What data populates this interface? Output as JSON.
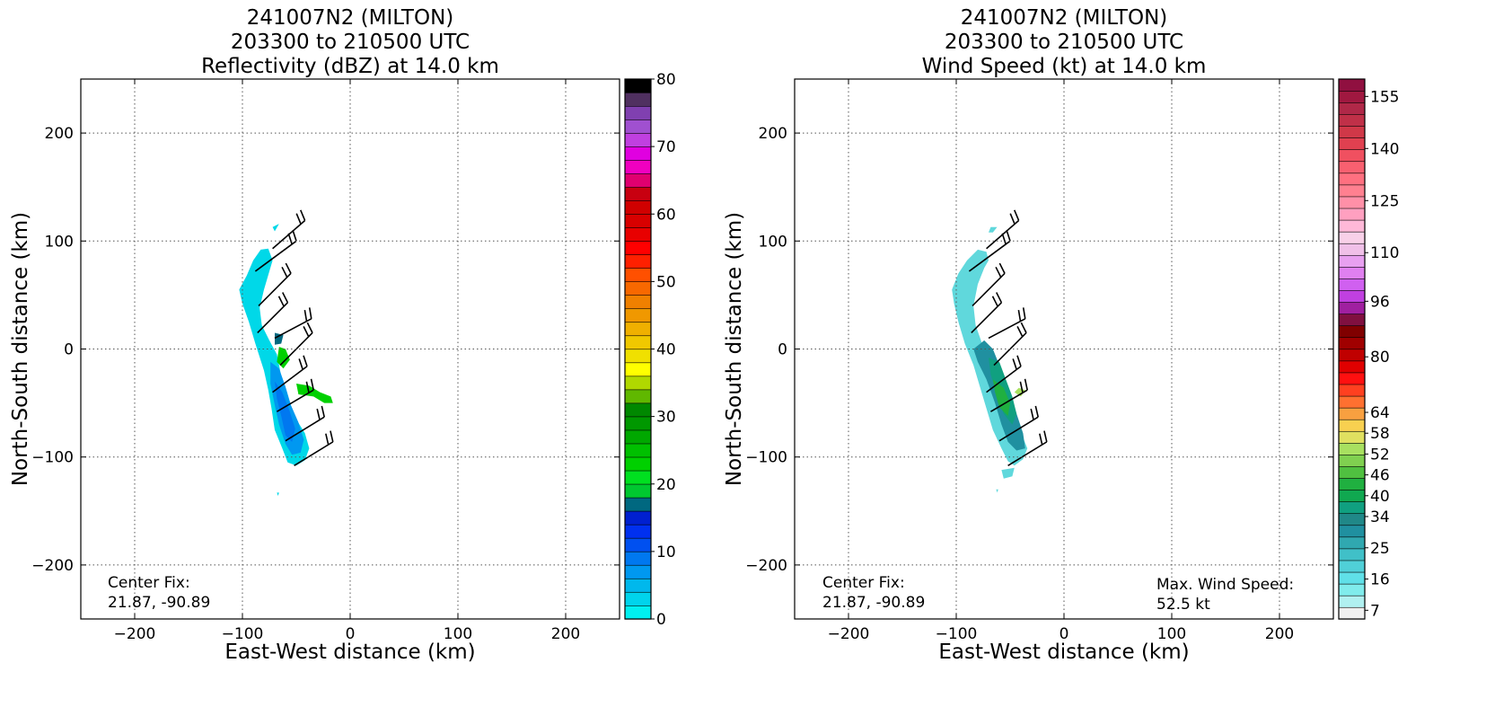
{
  "chart_data": [
    {
      "type": "heatmap",
      "title_lines": [
        "241007N2 (MILTON)",
        "203300 to 210500 UTC",
        "Reflectivity (dBZ) at 14.0 km"
      ],
      "xlabel": "East-West distance (km)",
      "ylabel": "North-South distance (km)",
      "xlim": [
        -250,
        250
      ],
      "ylim": [
        -250,
        250
      ],
      "xticks": [
        -200,
        -100,
        0,
        100,
        200
      ],
      "yticks": [
        -200,
        -100,
        0,
        100,
        200
      ],
      "grid": true,
      "colorbar": {
        "min": 0,
        "max": 80,
        "step": 2.5,
        "ticks": [
          0,
          10,
          20,
          30,
          40,
          50,
          60,
          70,
          80
        ],
        "colors": [
          "#00f0f0",
          "#00d4ec",
          "#00b8ec",
          "#0098f0",
          "#0078f0",
          "#0050f0",
          "#0030f0",
          "#0020d0",
          "#006880",
          "#00c830",
          "#00e020",
          "#00d000",
          "#00c000",
          "#00a800",
          "#009800",
          "#008800",
          "#60b800",
          "#b0d800",
          "#ffff00",
          "#f0e000",
          "#f0c800",
          "#f0b000",
          "#f09800",
          "#f08000",
          "#f86800",
          "#ff5000",
          "#ff2000",
          "#ff0000",
          "#e80000",
          "#d80000",
          "#d00000",
          "#c80010",
          "#e00070",
          "#f000c0",
          "#e000e0",
          "#c040e0",
          "#a050d0",
          "#8040b0",
          "#503060",
          "#000000"
        ]
      },
      "annotation": {
        "label": "Center Fix:",
        "value": "21.87, -90.89"
      },
      "regions": [
        {
          "color": "#00d8e8",
          "points": [
            [
              -72,
              113
            ],
            [
              -66,
              116
            ],
            [
              -70,
              109
            ]
          ]
        },
        {
          "color": "#00d8e8",
          "points": [
            [
              -83,
              92
            ],
            [
              -76,
              93
            ],
            [
              -72,
              82
            ],
            [
              -75,
              72
            ],
            [
              -80,
              55
            ],
            [
              -84,
              38
            ],
            [
              -82,
              22
            ],
            [
              -75,
              8
            ],
            [
              -68,
              -5
            ],
            [
              -64,
              -25
            ],
            [
              -58,
              -45
            ],
            [
              -52,
              -62
            ],
            [
              -42,
              -78
            ],
            [
              -38,
              -92
            ],
            [
              -42,
              -103
            ],
            [
              -50,
              -108
            ],
            [
              -58,
              -105
            ],
            [
              -63,
              -92
            ],
            [
              -70,
              -75
            ],
            [
              -73,
              -55
            ],
            [
              -76,
              -38
            ],
            [
              -80,
              -20
            ],
            [
              -88,
              5
            ],
            [
              -94,
              25
            ],
            [
              -100,
              42
            ],
            [
              -103,
              55
            ],
            [
              -96,
              68
            ],
            [
              -90,
              82
            ]
          ]
        },
        {
          "color": "#0098f0",
          "points": [
            [
              -74,
              -12
            ],
            [
              -66,
              -18
            ],
            [
              -60,
              -35
            ],
            [
              -55,
              -52
            ],
            [
              -48,
              -68
            ],
            [
              -43,
              -84
            ],
            [
              -46,
              -96
            ],
            [
              -54,
              -98
            ],
            [
              -60,
              -88
            ],
            [
              -66,
              -70
            ],
            [
              -70,
              -52
            ],
            [
              -74,
              -32
            ]
          ]
        },
        {
          "color": "#0078f0",
          "points": [
            [
              -70,
              -30
            ],
            [
              -63,
              -40
            ],
            [
              -56,
              -58
            ],
            [
              -51,
              -74
            ],
            [
              -54,
              -86
            ],
            [
              -60,
              -80
            ],
            [
              -64,
              -62
            ],
            [
              -68,
              -46
            ]
          ]
        },
        {
          "color": "#00d000",
          "points": [
            [
              -66,
              2
            ],
            [
              -60,
              0
            ],
            [
              -56,
              -10
            ],
            [
              -62,
              -18
            ],
            [
              -68,
              -12
            ]
          ]
        },
        {
          "color": "#00d000",
          "points": [
            [
              -50,
              -32
            ],
            [
              -38,
              -34
            ],
            [
              -28,
              -40
            ],
            [
              -18,
              -44
            ],
            [
              -16,
              -50
            ],
            [
              -24,
              -50
            ],
            [
              -34,
              -44
            ],
            [
              -48,
              -42
            ]
          ]
        },
        {
          "color": "#006880",
          "points": [
            [
              -70,
              15
            ],
            [
              -62,
              13
            ],
            [
              -64,
              5
            ],
            [
              -70,
              4
            ]
          ]
        },
        {
          "color": "#00d8e8",
          "points": [
            [
              -68,
              -133
            ],
            [
              -66,
              -133
            ],
            [
              -67,
              -136
            ]
          ]
        }
      ],
      "barbs": [
        {
          "x": -88,
          "y": 72,
          "u": 38,
          "v": 28
        },
        {
          "x": -72,
          "y": 93,
          "u": 30,
          "v": 26
        },
        {
          "x": -85,
          "y": 40,
          "u": 30,
          "v": 30
        },
        {
          "x": -86,
          "y": 15,
          "u": 28,
          "v": 28
        },
        {
          "x": -70,
          "y": 10,
          "u": 34,
          "v": 18
        },
        {
          "x": -65,
          "y": -15,
          "u": 30,
          "v": 30
        },
        {
          "x": -72,
          "y": -40,
          "u": 32,
          "v": 24
        },
        {
          "x": -68,
          "y": -58,
          "u": 34,
          "v": 20
        },
        {
          "x": -60,
          "y": -85,
          "u": 36,
          "v": 22
        },
        {
          "x": -52,
          "y": -108,
          "u": 36,
          "v": 22
        }
      ]
    },
    {
      "type": "heatmap",
      "title_lines": [
        "241007N2 (MILTON)",
        "203300 to 210500 UTC",
        "Wind Speed (kt) at 14.0 km"
      ],
      "xlabel": "East-West distance (km)",
      "ylabel": "North-South distance (km)",
      "xlim": [
        -250,
        250
      ],
      "ylim": [
        -250,
        250
      ],
      "xticks": [
        -200,
        -100,
        0,
        100,
        200
      ],
      "yticks": [
        -200,
        -100,
        0,
        100,
        200
      ],
      "grid": true,
      "colorbar": {
        "min": 4.5,
        "max": 160,
        "step": 3,
        "ticks": [
          7,
          16,
          25,
          34,
          40,
          46,
          52,
          58,
          64,
          80,
          96,
          110,
          125,
          140,
          155
        ],
        "tick_positions": [
          7,
          16,
          25,
          34,
          40,
          46,
          52,
          58,
          64,
          80,
          96,
          110,
          125,
          140,
          155
        ],
        "colors": [
          "#f0f0f0",
          "#b0f0f0",
          "#80ecec",
          "#60e0e8",
          "#50d0d8",
          "#40c0c8",
          "#30a8b0",
          "#2090a0",
          "#208888",
          "#10a080",
          "#10a850",
          "#20b040",
          "#50c040",
          "#80d050",
          "#a8e060",
          "#e0e060",
          "#f8d050",
          "#f8a040",
          "#ff7030",
          "#ff4020",
          "#ff1010",
          "#e00000",
          "#c00000",
          "#a00000",
          "#800000",
          "#801040",
          "#a020a0",
          "#c040e0",
          "#d060f0",
          "#e080f0",
          "#e8a0f0",
          "#f0c0e8",
          "#f8d0e8",
          "#ffb8d8",
          "#ffa0c0",
          "#ff90a8",
          "#ff8090",
          "#ff7080",
          "#f86070",
          "#f05060",
          "#e04050",
          "#d03848",
          "#c03048",
          "#b02848",
          "#a01840",
          "#901040"
        ]
      },
      "annotation": {
        "label": "Center Fix:",
        "value": "21.87, -90.89"
      },
      "annotation2": {
        "label": "Max. Wind Speed:",
        "value": "52.5 kt"
      },
      "regions": [
        {
          "color": "#60d8dc",
          "points": [
            [
              -68,
              113
            ],
            [
              -62,
              113
            ],
            [
              -66,
              108
            ],
            [
              -70,
              108
            ]
          ]
        },
        {
          "color": "#60d8dc",
          "points": [
            [
              -80,
              92
            ],
            [
              -72,
              90
            ],
            [
              -70,
              82
            ],
            [
              -74,
              75
            ],
            [
              -80,
              60
            ],
            [
              -84,
              40
            ],
            [
              -82,
              22
            ],
            [
              -76,
              5
            ],
            [
              -68,
              -10
            ],
            [
              -60,
              -30
            ],
            [
              -54,
              -50
            ],
            [
              -46,
              -68
            ],
            [
              -38,
              -82
            ],
            [
              -34,
              -92
            ],
            [
              -38,
              -102
            ],
            [
              -46,
              -108
            ],
            [
              -52,
              -104
            ],
            [
              -58,
              -92
            ],
            [
              -66,
              -75
            ],
            [
              -72,
              -55
            ],
            [
              -78,
              -35
            ],
            [
              -84,
              -15
            ],
            [
              -92,
              5
            ],
            [
              -98,
              25
            ],
            [
              -102,
              42
            ],
            [
              -104,
              55
            ],
            [
              -98,
              70
            ],
            [
              -90,
              82
            ]
          ]
        },
        {
          "color": "#2090a0",
          "points": [
            [
              -84,
              0
            ],
            [
              -74,
              8
            ],
            [
              -66,
              0
            ],
            [
              -58,
              -20
            ],
            [
              -50,
              -40
            ],
            [
              -44,
              -60
            ],
            [
              -38,
              -78
            ],
            [
              -36,
              -92
            ],
            [
              -44,
              -94
            ],
            [
              -52,
              -86
            ],
            [
              -58,
              -70
            ],
            [
              -64,
              -50
            ],
            [
              -72,
              -28
            ],
            [
              -80,
              -12
            ]
          ]
        },
        {
          "color": "#10a080",
          "points": [
            [
              -70,
              -8
            ],
            [
              -60,
              -12
            ],
            [
              -54,
              -28
            ],
            [
              -48,
              -44
            ],
            [
              -44,
              -60
            ],
            [
              -48,
              -70
            ],
            [
              -56,
              -60
            ],
            [
              -62,
              -42
            ],
            [
              -68,
              -24
            ]
          ]
        },
        {
          "color": "#20b040",
          "points": [
            [
              -66,
              -28
            ],
            [
              -56,
              -36
            ],
            [
              -50,
              -50
            ],
            [
              -52,
              -62
            ],
            [
              -60,
              -54
            ],
            [
              -64,
              -40
            ]
          ]
        },
        {
          "color": "#a8e060",
          "points": [
            [
              -42,
              -36
            ],
            [
              -36,
              -38
            ],
            [
              -40,
              -44
            ],
            [
              -46,
              -40
            ]
          ]
        },
        {
          "color": "#60d8dc",
          "points": [
            [
              -63,
              -130
            ],
            [
              -61,
              -130
            ],
            [
              -62,
              -133
            ]
          ]
        },
        {
          "color": "#60d8dc",
          "points": [
            [
              -58,
              -112
            ],
            [
              -46,
              -110
            ],
            [
              -48,
              -118
            ],
            [
              -56,
              -120
            ]
          ]
        }
      ],
      "barbs": [
        {
          "x": -88,
          "y": 72,
          "u": 38,
          "v": 28
        },
        {
          "x": -72,
          "y": 93,
          "u": 30,
          "v": 26
        },
        {
          "x": -85,
          "y": 40,
          "u": 30,
          "v": 30
        },
        {
          "x": -86,
          "y": 15,
          "u": 28,
          "v": 28
        },
        {
          "x": -70,
          "y": 10,
          "u": 34,
          "v": 18
        },
        {
          "x": -65,
          "y": -15,
          "u": 30,
          "v": 30
        },
        {
          "x": -72,
          "y": -40,
          "u": 32,
          "v": 24
        },
        {
          "x": -68,
          "y": -58,
          "u": 34,
          "v": 20
        },
        {
          "x": -60,
          "y": -85,
          "u": 36,
          "v": 22
        },
        {
          "x": -52,
          "y": -108,
          "u": 36,
          "v": 22
        }
      ]
    }
  ]
}
